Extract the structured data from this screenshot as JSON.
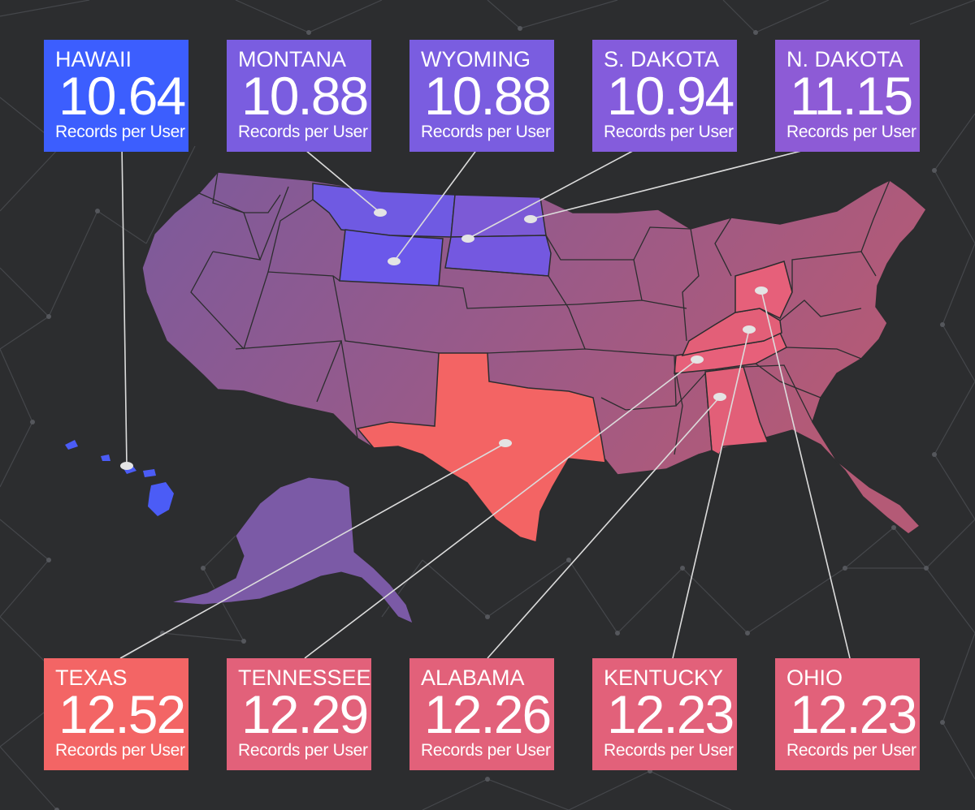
{
  "unit_label": "Records per User",
  "colors": {
    "background": "#2c2d2f",
    "lowest": "#3c5efe",
    "low": "#7a5de0",
    "high": "#e2617a",
    "highest": "#f36565"
  },
  "top_states": [
    {
      "id": "hawaii",
      "name": "HAWAII",
      "value": "10.64",
      "color": "#3c5efe"
    },
    {
      "id": "montana",
      "name": "MONTANA",
      "value": "10.88",
      "color": "#7a5de0"
    },
    {
      "id": "wyoming",
      "name": "WYOMING",
      "value": "10.88",
      "color": "#7a5de0"
    },
    {
      "id": "sdakota",
      "name": "S. DAKOTA",
      "value": "10.94",
      "color": "#845cdc"
    },
    {
      "id": "ndakota",
      "name": "N. DAKOTA",
      "value": "11.15",
      "color": "#8d5bd6"
    }
  ],
  "bottom_states": [
    {
      "id": "texas",
      "name": "TEXAS",
      "value": "12.52",
      "color": "#f36565"
    },
    {
      "id": "tennessee",
      "name": "TENNESSEE",
      "value": "12.29",
      "color": "#e2617a"
    },
    {
      "id": "alabama",
      "name": "ALABAMA",
      "value": "12.26",
      "color": "#e2617a"
    },
    {
      "id": "kentucky",
      "name": "KENTUCKY",
      "value": "12.23",
      "color": "#e2617a"
    },
    {
      "id": "ohio",
      "name": "OHIO",
      "value": "12.23",
      "color": "#e2617a"
    }
  ]
}
